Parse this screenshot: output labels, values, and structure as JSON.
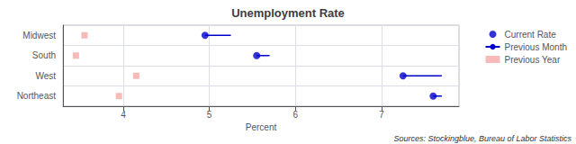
{
  "chart_data": {
    "type": "dot",
    "title": "Unemployment Rate",
    "x_label": "Percent",
    "annotations": [
      "Sources: Stockingblue, Bureau of Labor Statistics"
    ],
    "orientation": "horizontal",
    "categories": [
      "Midwest",
      "South",
      "West",
      "Northeast"
    ],
    "series": [
      {
        "name": "Current Rate",
        "type": "scatter",
        "marker": "circle",
        "color": "#0000cc",
        "values": [
          4.95,
          5.55,
          7.25,
          7.6
        ]
      },
      {
        "name": "Previous Month",
        "type": "line",
        "color": "#0000cc",
        "values": [
          5.25,
          5.7,
          7.7,
          7.7
        ]
      },
      {
        "name": "Previous Year",
        "type": "scatter",
        "marker": "square",
        "color": "#f4a9a8",
        "values": [
          3.55,
          3.45,
          4.15,
          3.95
        ]
      }
    ],
    "xlim": [
      3.3,
      7.9
    ],
    "xticks": [
      4,
      5,
      6,
      7
    ],
    "grid": true,
    "legend": "upper right"
  }
}
